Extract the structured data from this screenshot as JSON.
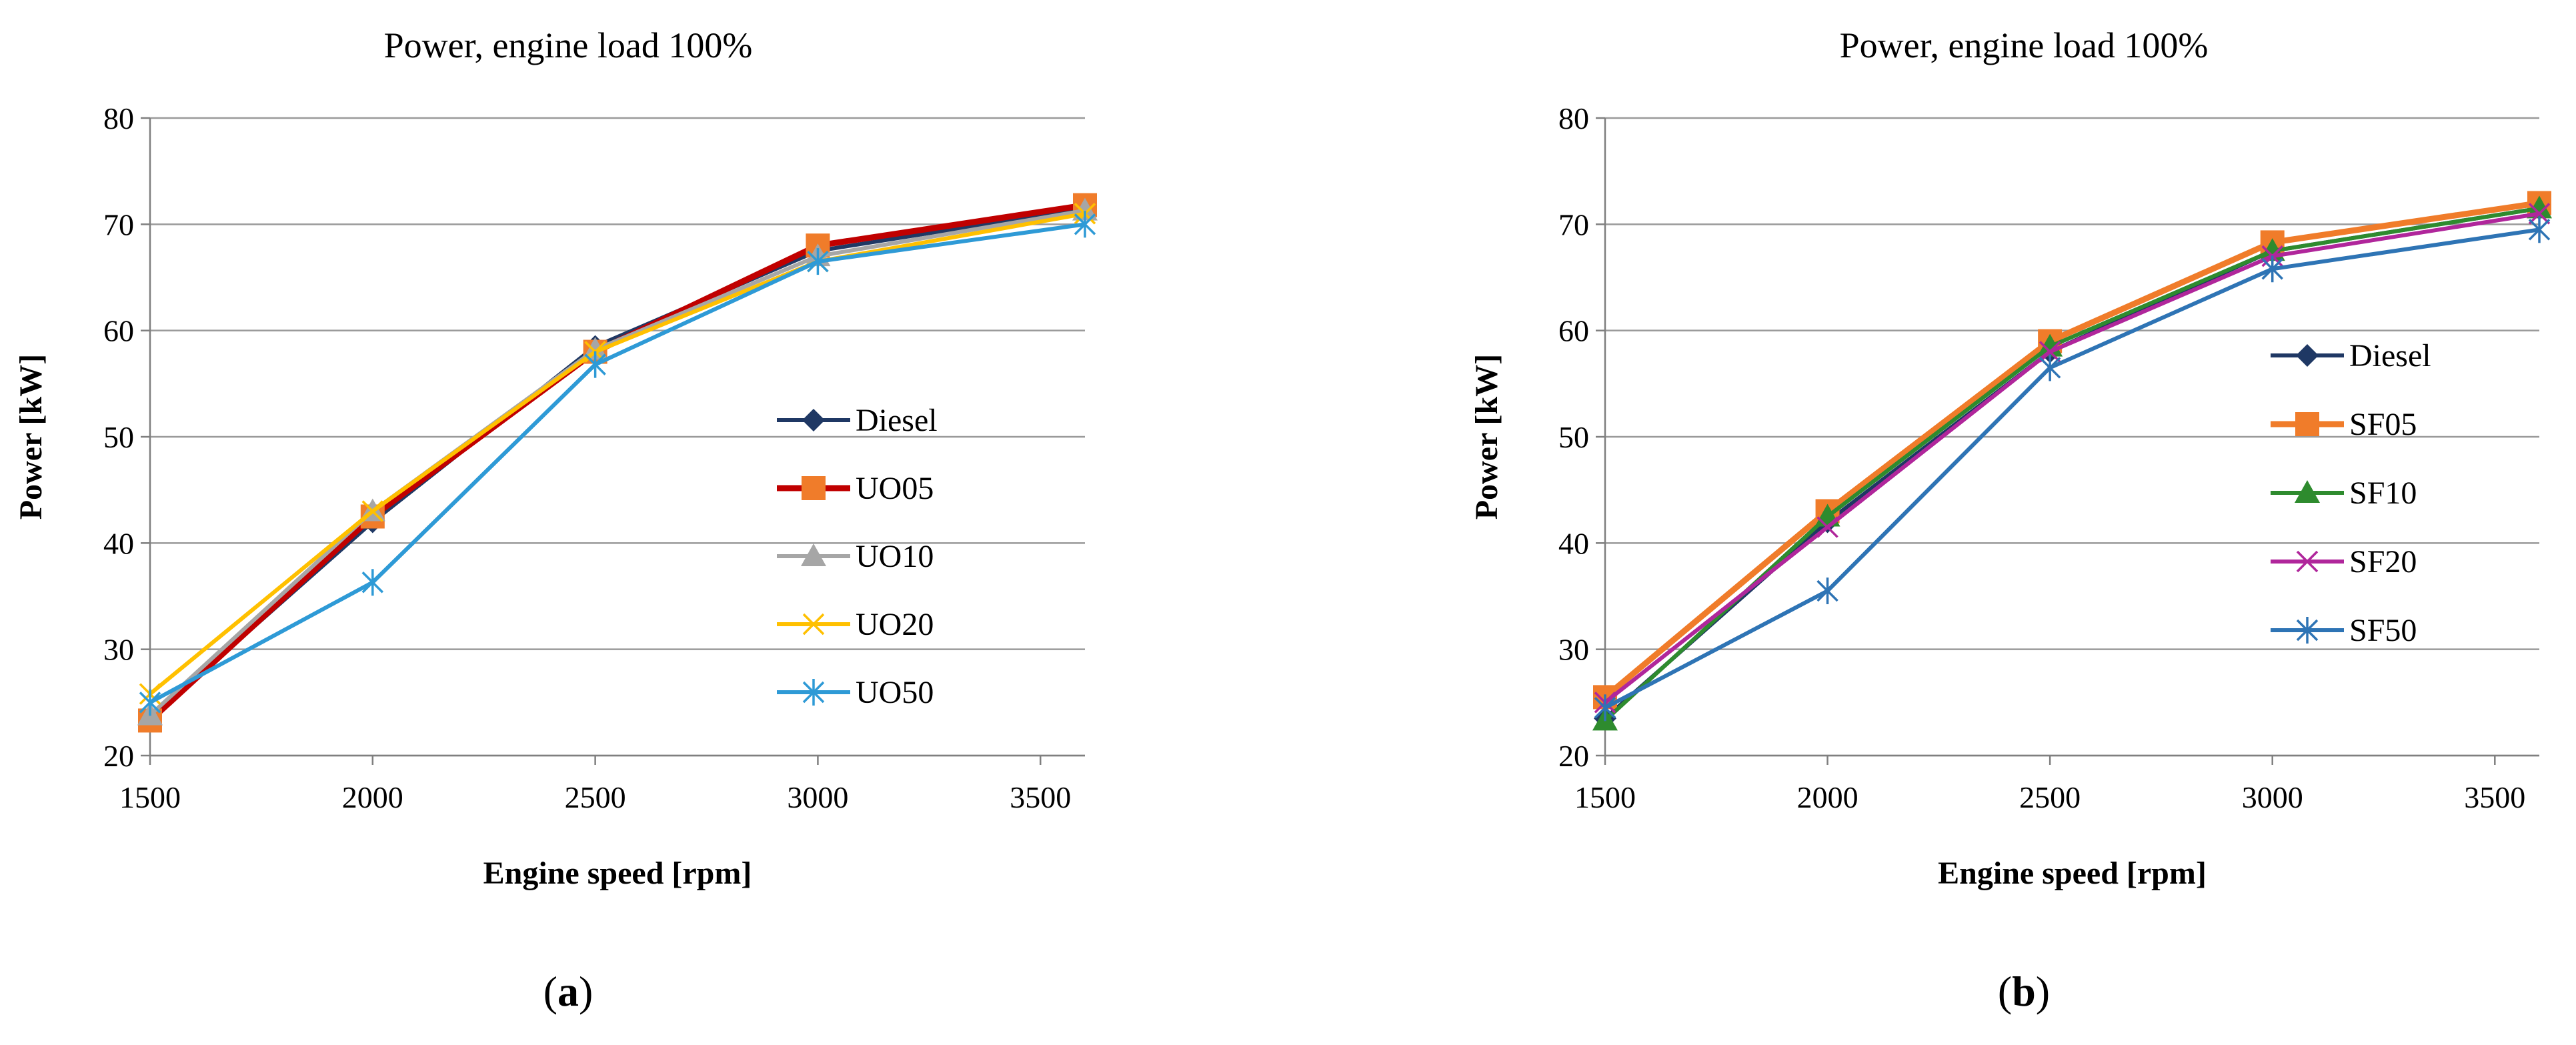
{
  "chart_data": [
    {
      "type": "line",
      "panel_label": "a",
      "title": "Power, engine load 100%",
      "xlabel": "Engine speed [rpm]",
      "ylabel": "Power [kW]",
      "xlim": [
        1500,
        3600
      ],
      "ylim": [
        20,
        80
      ],
      "xticks": [
        1500,
        2000,
        2500,
        3000,
        3500
      ],
      "yticks": [
        20,
        30,
        40,
        50,
        60,
        70,
        80
      ],
      "x": [
        1500,
        2000,
        2500,
        3000,
        3600
      ],
      "legend_position": "center-right",
      "series": [
        {
          "name": "Diesel",
          "color": "#1f3864",
          "marker": "diamond",
          "values": [
            23.5,
            42.0,
            58.5,
            67.5,
            71.5
          ]
        },
        {
          "name": "UO05",
          "color": "#c00000",
          "marker": "square",
          "marker_color": "#f07c2a",
          "values": [
            23.3,
            42.5,
            58.0,
            68.0,
            71.8
          ]
        },
        {
          "name": "UO10",
          "color": "#a6a6a6",
          "marker": "triangle",
          "values": [
            23.8,
            43.0,
            58.2,
            67.0,
            71.3
          ]
        },
        {
          "name": "UO20",
          "color": "#ffc000",
          "marker": "x",
          "values": [
            25.8,
            43.0,
            58.0,
            66.5,
            71.0
          ]
        },
        {
          "name": "UO50",
          "color": "#2e9ad6",
          "marker": "asterisk",
          "values": [
            25.0,
            36.3,
            56.8,
            66.5,
            70.0
          ]
        }
      ]
    },
    {
      "type": "line",
      "panel_label": "b",
      "title": "Power, engine load 100%",
      "xlabel": "Engine speed [rpm]",
      "ylabel": "Power [kW]",
      "xlim": [
        1500,
        3600
      ],
      "ylim": [
        20,
        80
      ],
      "xticks": [
        1500,
        2000,
        2500,
        3000,
        3500
      ],
      "yticks": [
        20,
        30,
        40,
        50,
        60,
        70,
        80
      ],
      "x": [
        1500,
        2000,
        2500,
        3000,
        3600
      ],
      "legend_position": "center-right",
      "series": [
        {
          "name": "Diesel",
          "color": "#1f3864",
          "marker": "diamond",
          "values": [
            23.5,
            42.0,
            58.0,
            67.5,
            71.5
          ]
        },
        {
          "name": "SF05",
          "color": "#f07c2a",
          "marker": "square",
          "values": [
            25.5,
            43.0,
            59.0,
            68.3,
            72.0
          ]
        },
        {
          "name": "SF10",
          "color": "#2e8b2e",
          "marker": "triangle",
          "values": [
            23.3,
            42.5,
            58.5,
            67.5,
            71.5
          ]
        },
        {
          "name": "SF20",
          "color": "#b0269b",
          "marker": "x",
          "values": [
            25.0,
            41.5,
            58.0,
            67.0,
            71.0
          ]
        },
        {
          "name": "SF50",
          "color": "#2e74b5",
          "marker": "asterisk",
          "values": [
            24.5,
            35.5,
            56.5,
            65.8,
            69.5
          ]
        }
      ]
    }
  ],
  "captions": [
    {
      "open": "(",
      "label": "a",
      "close": ")"
    },
    {
      "open": "(",
      "label": "b",
      "close": ")"
    }
  ]
}
